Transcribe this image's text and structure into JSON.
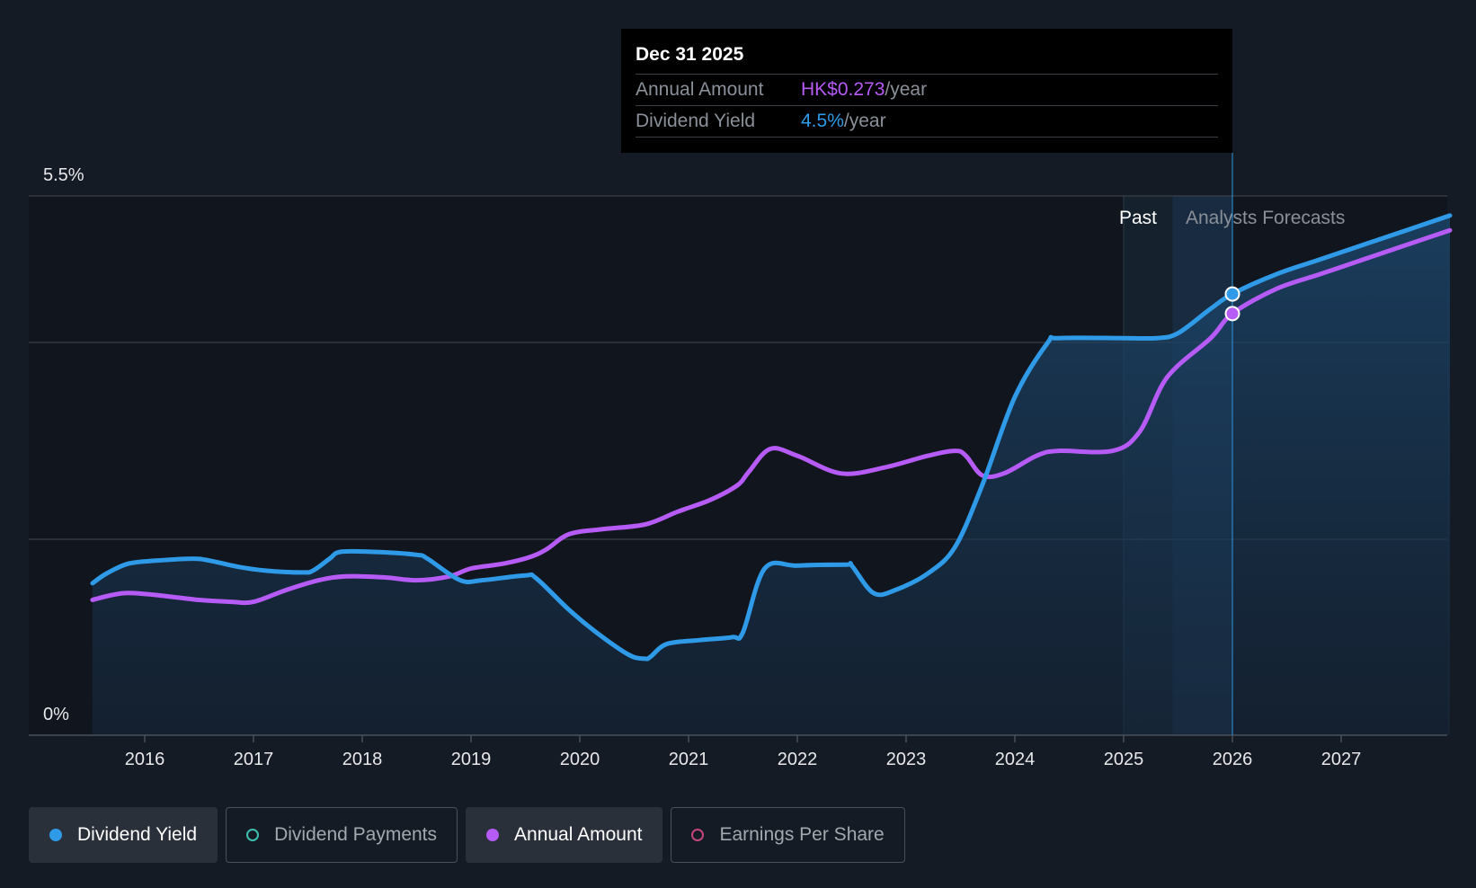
{
  "chart_data": {
    "type": "line",
    "y_axis": {
      "min_label": "0%",
      "max_label": "5.5%",
      "ylim": [
        0,
        5.5
      ]
    },
    "x_ticks": [
      "2016",
      "2017",
      "2018",
      "2019",
      "2020",
      "2021",
      "2022",
      "2023",
      "2024",
      "2025",
      "2026",
      "2027"
    ],
    "xlim": [
      2015.0,
      2028.0
    ],
    "past_label": "Past",
    "forecast_label": "Analysts Forecasts",
    "forecast_start": 2025.45,
    "past_band_start": 2025.0,
    "highlight_x": 2026.0,
    "series": [
      {
        "name": "Dividend Yield",
        "color": "#2f9be8",
        "x": [
          2015.52,
          2015.65,
          2015.85,
          2016.1,
          2016.45,
          2016.6,
          2016.85,
          2017.1,
          2017.45,
          2017.55,
          2017.7,
          2017.8,
          2018.1,
          2018.5,
          2018.6,
          2018.9,
          2019.1,
          2019.5,
          2019.6,
          2019.9,
          2020.15,
          2020.45,
          2020.6,
          2020.65,
          2020.8,
          2021.1,
          2021.4,
          2021.5,
          2021.7,
          2022.0,
          2022.45,
          2022.5,
          2022.7,
          2022.9,
          2023.2,
          2023.45,
          2023.7,
          2024.0,
          2024.3,
          2024.4,
          2025.0,
          2025.3,
          2025.5,
          2025.8,
          2026.0,
          2026.4,
          2026.8,
          2027.2,
          2027.6,
          2028.0
        ],
        "values": [
          1.55,
          1.65,
          1.75,
          1.78,
          1.8,
          1.78,
          1.72,
          1.68,
          1.66,
          1.68,
          1.8,
          1.87,
          1.87,
          1.84,
          1.8,
          1.58,
          1.58,
          1.63,
          1.6,
          1.28,
          1.05,
          0.82,
          0.78,
          0.8,
          0.93,
          0.97,
          1.0,
          1.05,
          1.7,
          1.73,
          1.74,
          1.73,
          1.45,
          1.48,
          1.65,
          1.92,
          2.55,
          3.45,
          4.0,
          4.05,
          4.05,
          4.05,
          4.1,
          4.35,
          4.5,
          4.7,
          4.85,
          5.0,
          5.15,
          5.3
        ]
      },
      {
        "name": "Annual Amount",
        "color": "#b65bf5",
        "x": [
          2015.52,
          2015.7,
          2015.85,
          2016.1,
          2016.5,
          2016.8,
          2017.0,
          2017.3,
          2017.6,
          2017.85,
          2018.2,
          2018.5,
          2018.8,
          2019.0,
          2019.3,
          2019.55,
          2019.7,
          2019.9,
          2020.2,
          2020.6,
          2020.9,
          2021.2,
          2021.45,
          2021.55,
          2021.75,
          2022.0,
          2022.4,
          2022.8,
          2023.2,
          2023.45,
          2023.55,
          2023.7,
          2023.9,
          2024.2,
          2024.4,
          2024.9,
          2025.15,
          2025.4,
          2025.8,
          2026.0,
          2026.4,
          2026.8,
          2027.2,
          2027.6,
          2028.0
        ],
        "values": [
          1.38,
          1.43,
          1.45,
          1.43,
          1.38,
          1.36,
          1.36,
          1.48,
          1.58,
          1.62,
          1.61,
          1.58,
          1.62,
          1.7,
          1.75,
          1.82,
          1.9,
          2.05,
          2.1,
          2.15,
          2.28,
          2.4,
          2.55,
          2.68,
          2.92,
          2.85,
          2.67,
          2.73,
          2.85,
          2.9,
          2.85,
          2.65,
          2.67,
          2.85,
          2.9,
          2.9,
          3.1,
          3.65,
          4.05,
          4.3,
          4.55,
          4.7,
          4.85,
          5.0,
          5.15
        ]
      }
    ]
  },
  "tooltip": {
    "date": "Dec 31 2025",
    "rows": [
      {
        "label": "Annual Amount",
        "value": "HK$0.273",
        "unit": "/year"
      },
      {
        "label": "Dividend Yield",
        "value": "4.5%",
        "unit": "/year"
      }
    ]
  },
  "legend": [
    {
      "label": "Dividend Yield",
      "color": "#2f9be8",
      "active": true
    },
    {
      "label": "Dividend Payments",
      "color": "#3fbfb0",
      "active": false
    },
    {
      "label": "Annual Amount",
      "color": "#b65bf5",
      "active": true
    },
    {
      "label": "Earnings Per Share",
      "color": "#c4457a",
      "active": false
    }
  ],
  "colors": {
    "background": "#151b24",
    "plot_area": "#11161e",
    "grid": "#3a4149"
  }
}
